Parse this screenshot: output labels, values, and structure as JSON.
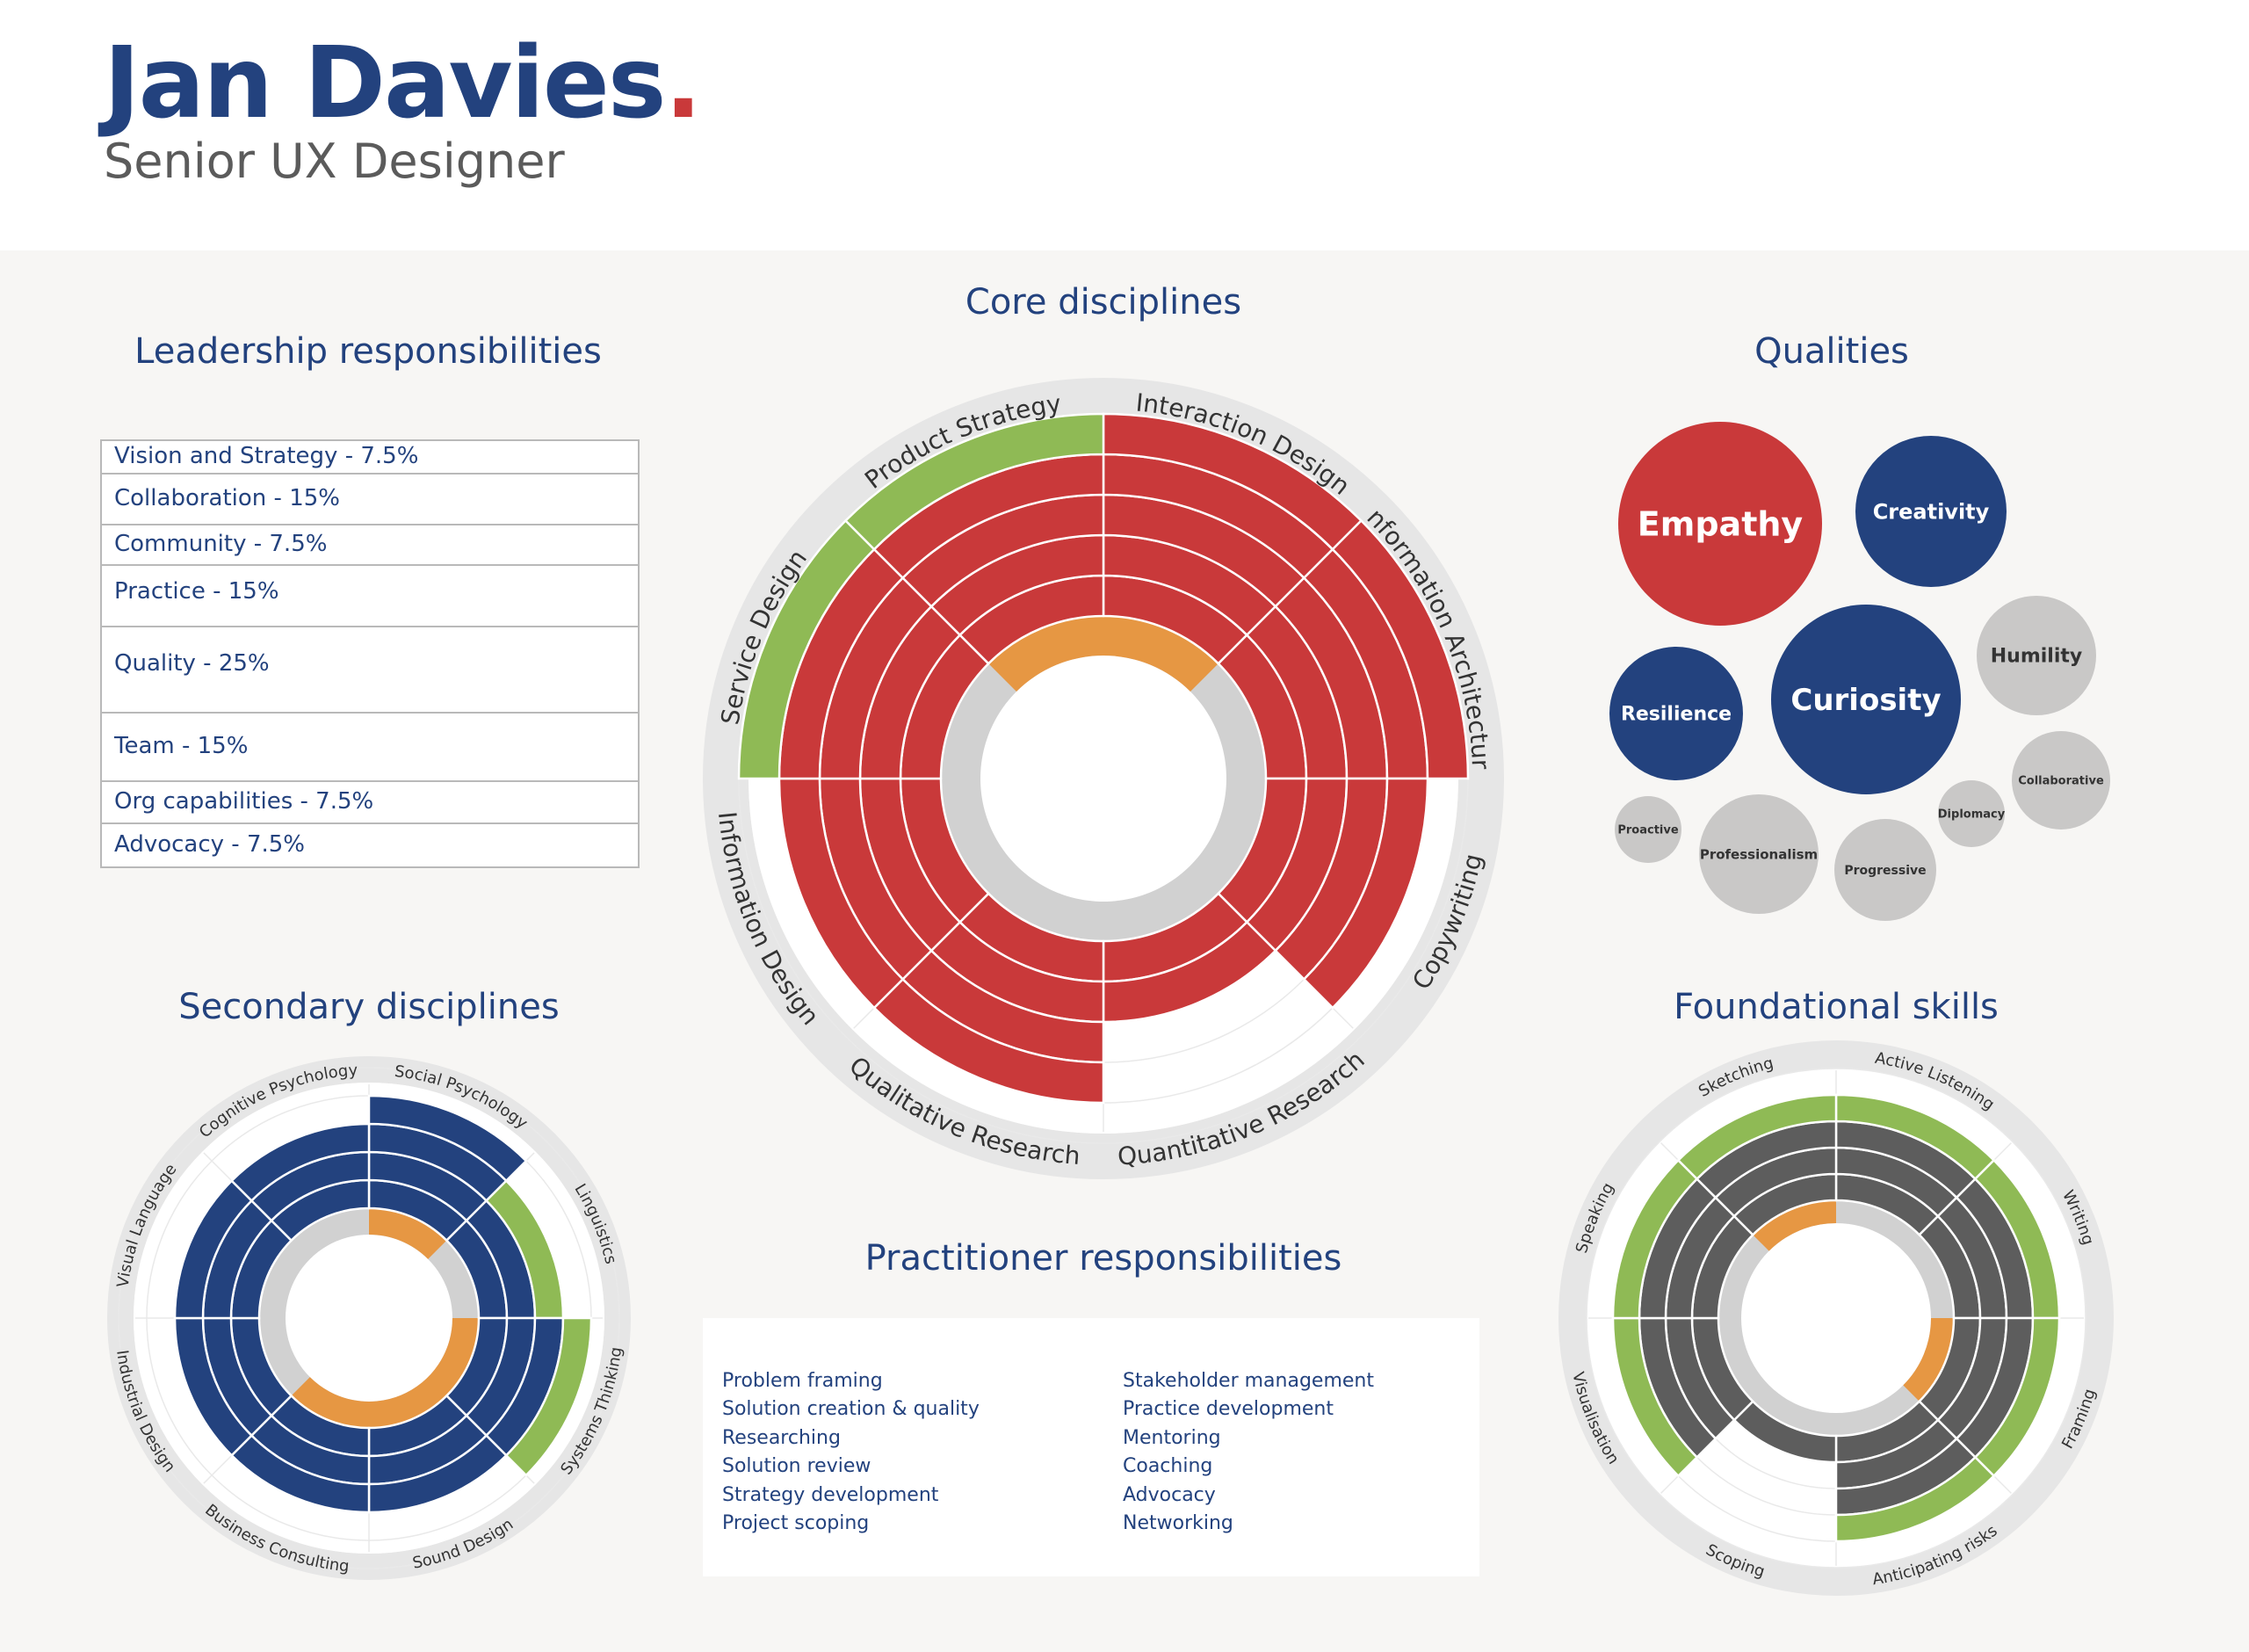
{
  "header": {
    "name": "Jan Davies",
    "dot": ".",
    "role": "Senior UX Designer"
  },
  "sections": {
    "leadership": "Leadership responsibilities",
    "core": "Core disciplines",
    "qualities": "Qualities",
    "secondary": "Secondary disciplines",
    "practitioner": "Practitioner responsibilities",
    "foundational": "Foundational skills"
  },
  "colors": {
    "navy": "#23427e",
    "red": "#c9393a",
    "green": "#8fba55",
    "orange": "#e69743",
    "lightgray": "#d1d1d1",
    "darkgray": "#5d5d5d",
    "bubblegray": "#c9c8c7",
    "ring": "#e6e6e6"
  },
  "leadership": [
    {
      "label": "Vision and Strategy - 7.5%",
      "weight": 7.5
    },
    {
      "label": "Collaboration - 15%",
      "weight": 15
    },
    {
      "label": "Community - 7.5%",
      "weight": 7.5
    },
    {
      "label": "Practice - 15%",
      "weight": 15
    },
    {
      "label": "Quality - 25%",
      "weight": 25
    },
    {
      "label": "Team - 15%",
      "weight": 15
    },
    {
      "label": "Org capabilities - 7.5%",
      "weight": 7.5
    },
    {
      "label": "Advocacy - 7.5%",
      "weight": 7.5
    }
  ],
  "practitioner": {
    "left": [
      "Problem framing",
      "Solution creation & quality",
      "Researching",
      "Solution review",
      "Strategy development",
      "Project scoping"
    ],
    "right": [
      "Stakeholder management",
      "Practice development",
      "Mentoring",
      "Coaching",
      "Advocacy",
      "Networking"
    ]
  },
  "qualities": [
    {
      "label": "Empathy",
      "size": 5,
      "color": "#c9393a"
    },
    {
      "label": "Creativity",
      "size": 4,
      "color": "#23427e"
    },
    {
      "label": "Humility",
      "size": 3,
      "color": "#c9c8c7"
    },
    {
      "label": "Curiosity",
      "size": 5,
      "color": "#23427e"
    },
    {
      "label": "Resilience",
      "size": 4,
      "color": "#23427e"
    },
    {
      "label": "Collaborative",
      "size": 2,
      "color": "#c9c8c7"
    },
    {
      "label": "Diplomacy",
      "size": 1,
      "color": "#c9c8c7"
    },
    {
      "label": "Proactive",
      "size": 1,
      "color": "#c9c8c7"
    },
    {
      "label": "Professionalism",
      "size": 3,
      "color": "#c9c8c7"
    },
    {
      "label": "Progressive",
      "size": 2,
      "color": "#c9c8c7"
    }
  ],
  "chart_data": [
    {
      "type": "radial-bar",
      "title": "Core disciplines",
      "max_level": 5,
      "categories": [
        "Interaction Design",
        "Information Architecture",
        "Copywriting",
        "Quantitative Research",
        "Qualitative Research",
        "Information Design",
        "Service Design",
        "Product Strategy"
      ],
      "values": [
        5,
        5,
        4,
        2,
        4,
        4,
        5,
        5
      ],
      "colors": [
        "#c9393a",
        "#c9393a",
        "#c9393a",
        "#c9393a",
        "#c9393a",
        "#c9393a",
        "#8fba55",
        "#8fba55"
      ]
    },
    {
      "type": "radial-bar",
      "title": "Secondary disciplines",
      "max_level": 5,
      "categories": [
        "Social Psychology",
        "Linguistics",
        "Systems Thinking",
        "Sound Design",
        "Business Consulting",
        "Industrial Design",
        "Visual Language",
        "Cognitive Psychology"
      ],
      "values": [
        4,
        3,
        4,
        3,
        3,
        3,
        3,
        3
      ],
      "colors": [
        "#23427e",
        "#8fba55",
        "#8fba55",
        "#23427e",
        "#23427e",
        "#23427e",
        "#23427e",
        "#23427e"
      ]
    },
    {
      "type": "radial-bar",
      "title": "Foundational skills",
      "max_level": 5,
      "categories": [
        "Active Listening",
        "Writing",
        "Framing",
        "Anticipating risks",
        "Scoping",
        "Visualisation",
        "Speaking",
        "Sketching"
      ],
      "values": [
        4,
        4,
        4,
        4,
        1,
        4,
        4,
        4
      ],
      "colors": [
        "#8fba55",
        "#8fba55",
        "#8fba55",
        "#8fba55",
        "#5d5d5d",
        "#8fba55",
        "#8fba55",
        "#8fba55"
      ]
    }
  ]
}
